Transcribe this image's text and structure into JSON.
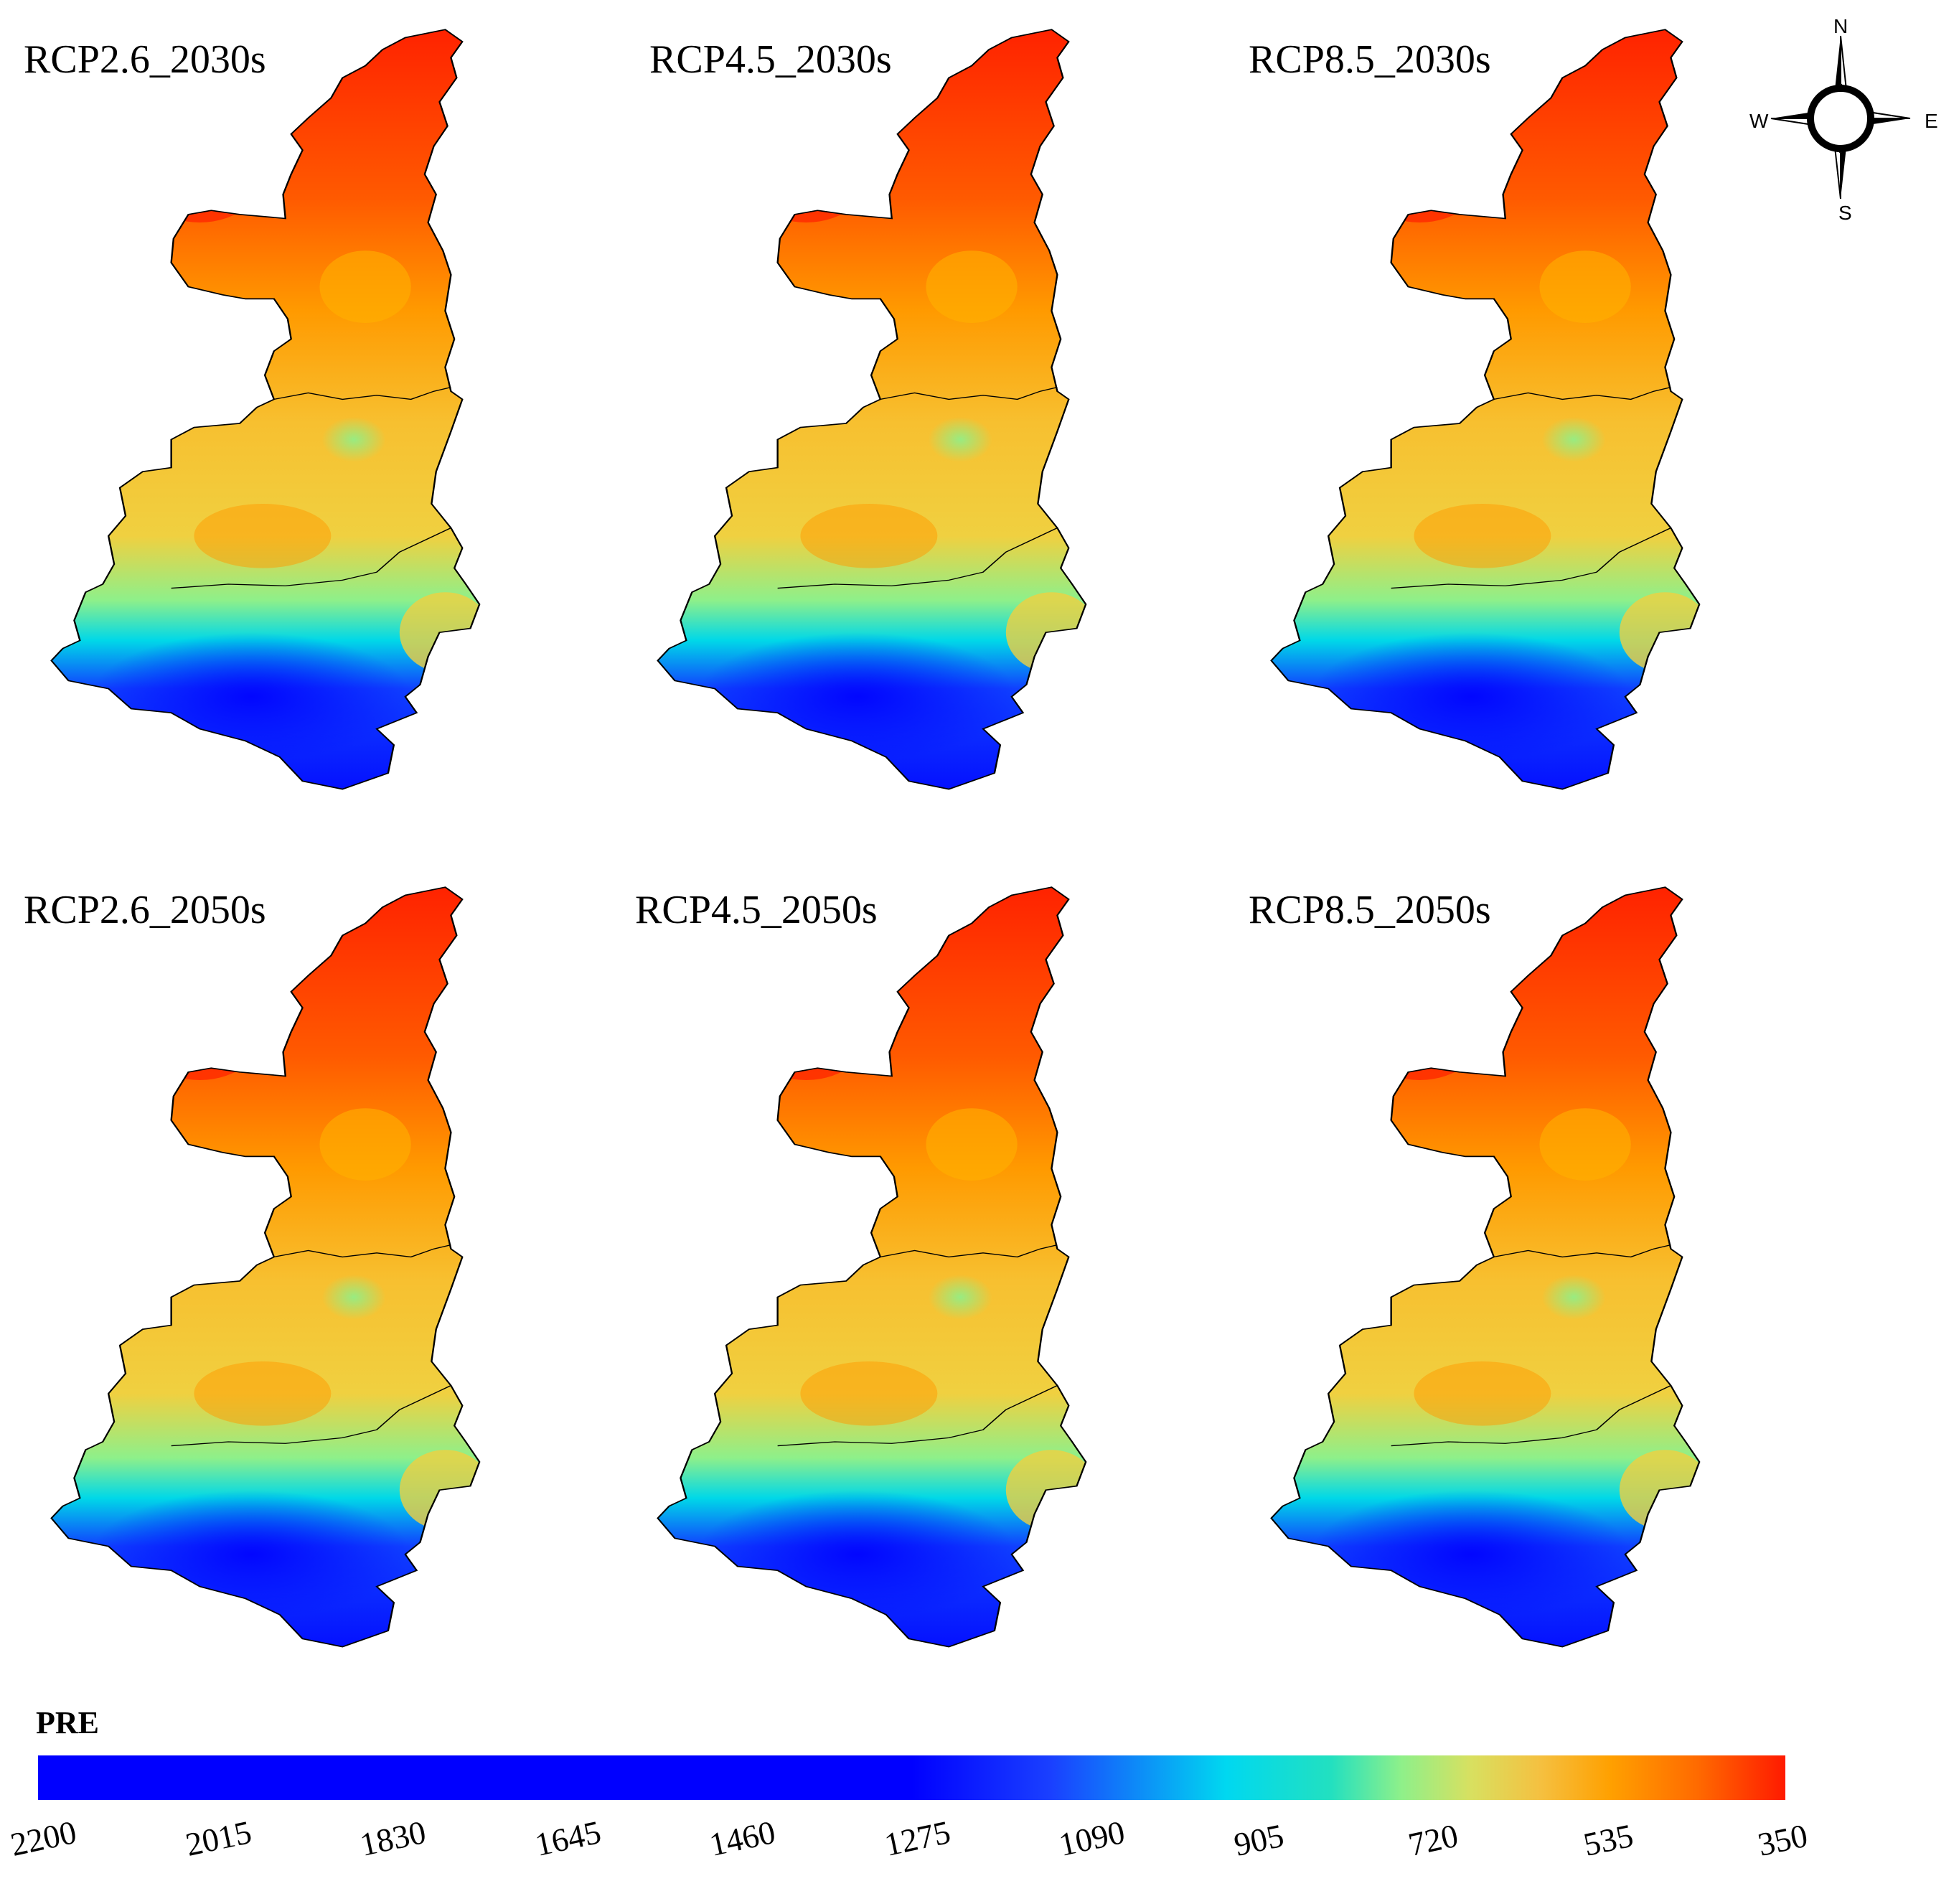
{
  "panels": [
    {
      "title": "RCP2.6_2030s"
    },
    {
      "title": "RCP4.5_2030s"
    },
    {
      "title": "RCP8.5_2030s"
    },
    {
      "title": "RCP2.6_2050s"
    },
    {
      "title": "RCP4.5_2050s"
    },
    {
      "title": "RCP8.5_2050s"
    }
  ],
  "compass": {
    "north": "N",
    "south": "S",
    "east": "E",
    "west": "W"
  },
  "legend": {
    "title": "PRE",
    "ticks": [
      "2200",
      "2015",
      "1830",
      "1645",
      "1460",
      "1275",
      "1090",
      "905",
      "720",
      "535",
      "350"
    ],
    "colors": {
      "low_precip": "#ff2000",
      "mid_orange": "#ff9a00",
      "mid_yellow": "#f0d040",
      "mid_green": "#8ef08a",
      "mid_cyan": "#00d8e8",
      "high_blue": "#1040ff",
      "high_precip": "#0000ff"
    }
  }
}
